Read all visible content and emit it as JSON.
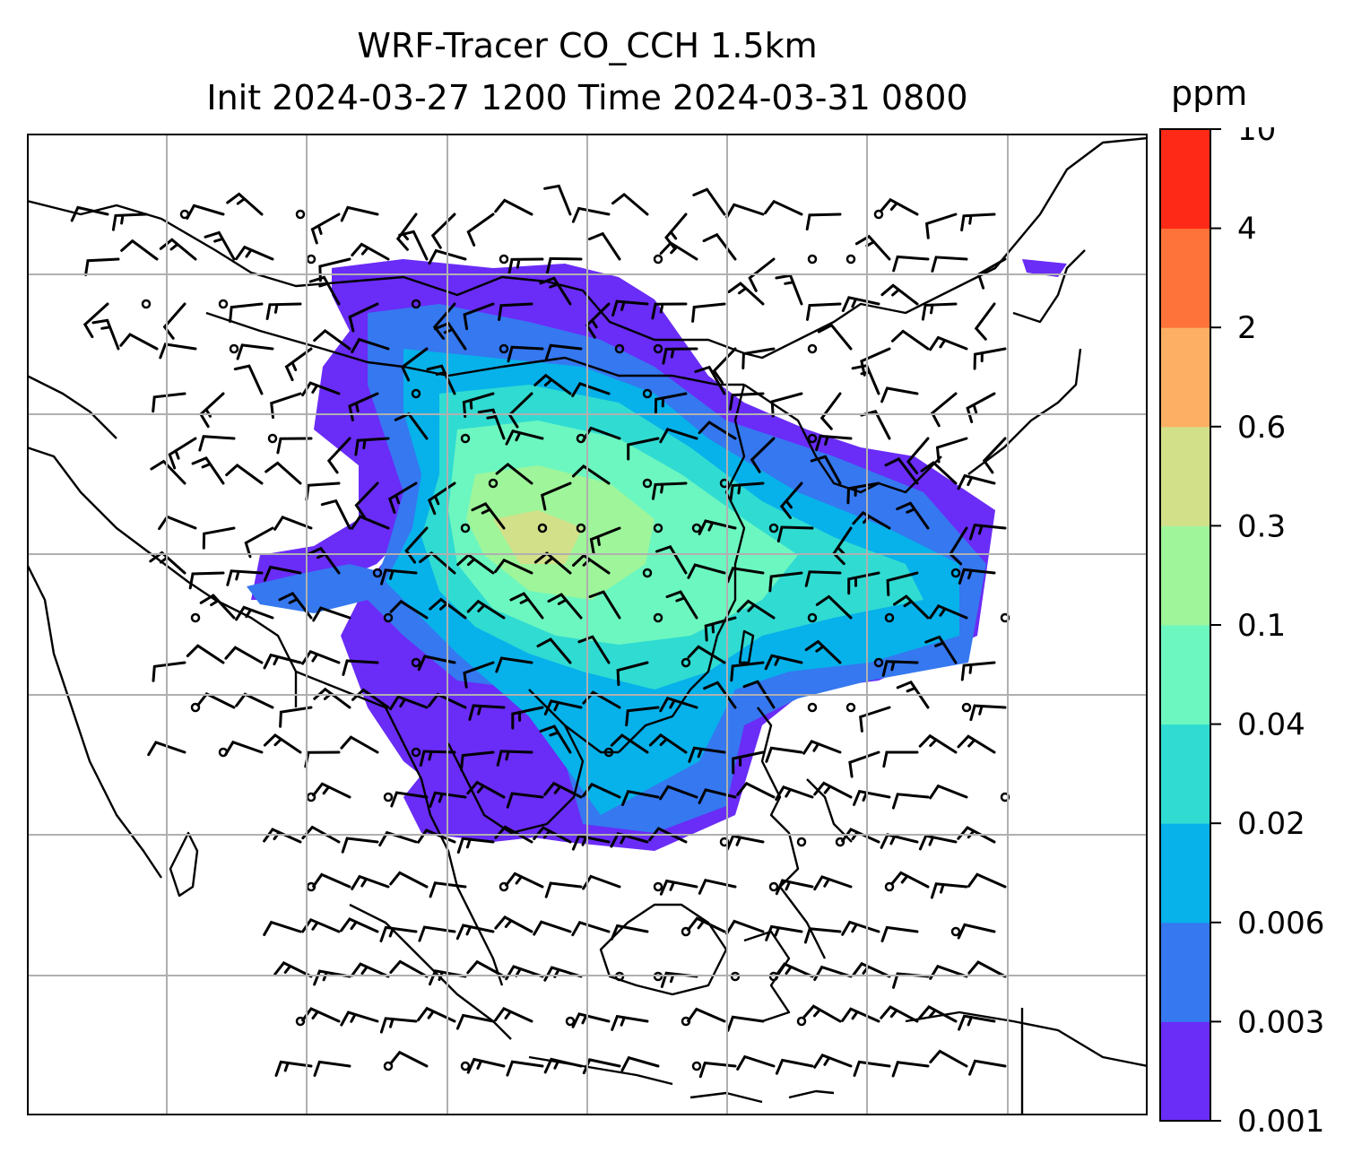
{
  "title": "WRF-Tracer CO_CCH 1.5km",
  "subtitle": "Init 2024-03-27 1200 Time 2024-03-31 0800",
  "colorbar": {
    "unit": "ppm",
    "ticks": [
      "0.001",
      "0.003",
      "0.006",
      "0.02",
      "0.04",
      "0.1",
      "0.3",
      "0.6",
      "2",
      "4",
      "10"
    ],
    "colors": [
      "#6a2cf7",
      "#3578f0",
      "#07b1ea",
      "#30dbd2",
      "#6cf7c0",
      "#9ef59a",
      "#d2e08a",
      "#fdb063",
      "#fe7339",
      "#fe2a17"
    ]
  },
  "map": {
    "grid": true,
    "coastline_color": "#000000",
    "barb_color": "#000000",
    "gridline_color": "#b0b0b0"
  }
}
